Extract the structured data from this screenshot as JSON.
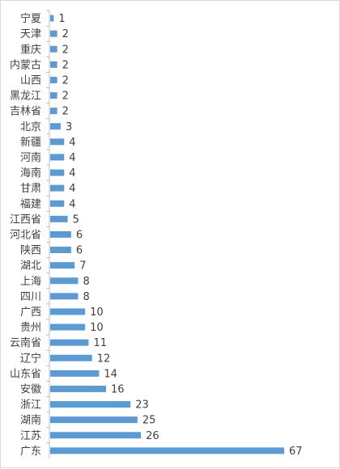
{
  "chart_data": {
    "type": "bar",
    "orientation": "horizontal",
    "categories": [
      "宁夏",
      "天津",
      "重庆",
      "内蒙古",
      "山西",
      "黑龙江",
      "吉林省",
      "北京",
      "新疆",
      "河南",
      "海南",
      "甘肃",
      "福建",
      "江西省",
      "河北省",
      "陕西",
      "湖北",
      "上海",
      "四川",
      "广西",
      "贵州",
      "云南省",
      "辽宁",
      "山东省",
      "安徽",
      "浙江",
      "湖南",
      "江苏",
      "广东"
    ],
    "values": [
      1,
      2,
      2,
      2,
      2,
      2,
      2,
      3,
      4,
      4,
      4,
      4,
      4,
      5,
      6,
      6,
      7,
      8,
      8,
      10,
      10,
      11,
      12,
      14,
      16,
      23,
      25,
      26,
      67
    ],
    "title": "",
    "xlabel": "",
    "ylabel": "",
    "xlim": [
      0,
      67
    ],
    "grid": false,
    "legend": "none",
    "data_labels": true,
    "colors": {
      "bar": "#5b9bd5",
      "axis": "#bfbfbf",
      "text": "#404040"
    }
  }
}
